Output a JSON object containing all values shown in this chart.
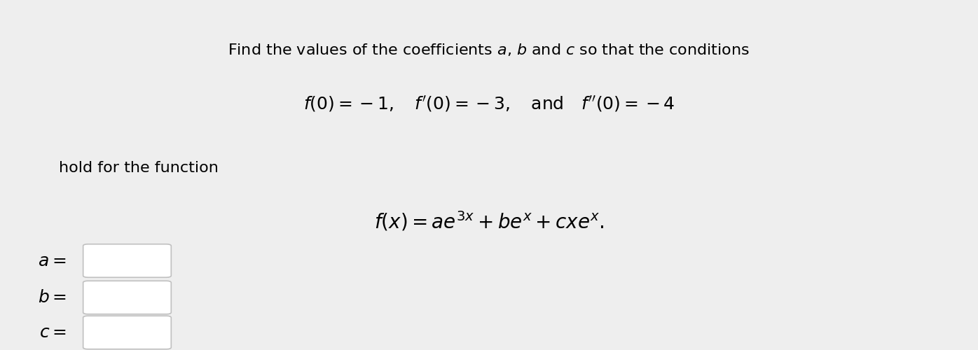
{
  "background_color": "#eeeeee",
  "white_bg": "#ffffff",
  "title_fontsize": 16,
  "cond_fontsize": 18,
  "hold_fontsize": 16,
  "func_fontsize": 20,
  "label_fontsize": 18,
  "fig_width": 13.96,
  "fig_height": 5.0,
  "dpi": 100
}
